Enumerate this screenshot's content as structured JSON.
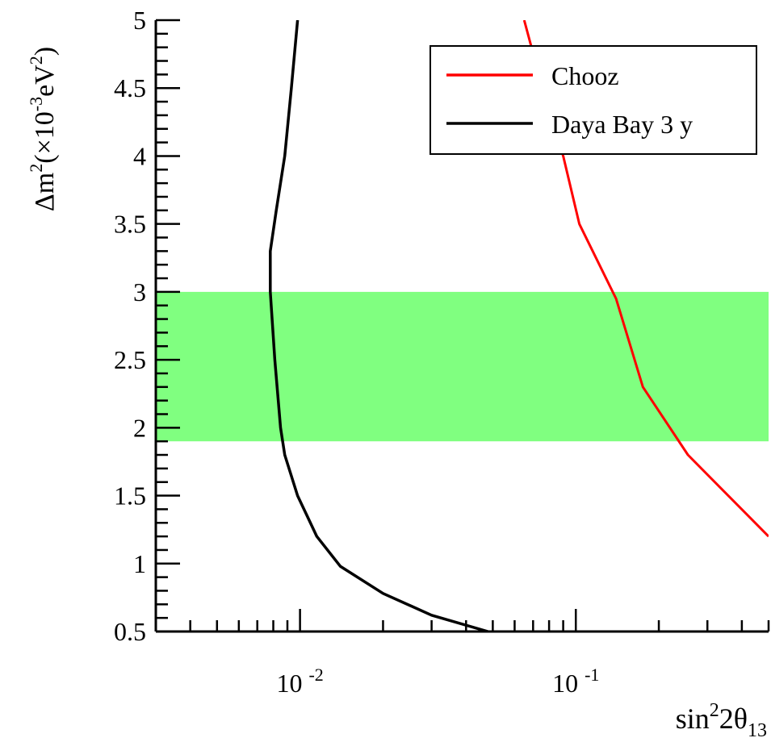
{
  "chart_data": {
    "type": "line",
    "xscale": "log",
    "xlim": [
      0.003,
      0.5
    ],
    "ylim": [
      0.5,
      5
    ],
    "grid": false,
    "legend_placement": "top-right",
    "xlabel": {
      "base": "sin",
      "sup1": "2",
      "mid": "2θ",
      "sub": "13"
    },
    "ylabel": {
      "a": "Δm",
      "sup1": "2",
      "b": "(×10",
      "sup2": "-3",
      "c": "eV",
      "sup3": "2",
      "d": ")"
    },
    "y_ticks": [
      0.5,
      1,
      1.5,
      2,
      2.5,
      3,
      3.5,
      4,
      4.5,
      5
    ],
    "y_tick_labels": [
      "0.5",
      "1",
      "1.5",
      "2",
      "2.5",
      "3",
      "3.5",
      "4",
      "4.5",
      "5"
    ],
    "x_tick_labels": [
      {
        "value": 0.01,
        "base": "10",
        "exp": "-2"
      },
      {
        "value": 0.1,
        "base": "10",
        "exp": "-1"
      }
    ],
    "band": {
      "ymin": 1.9,
      "ymax": 3.0,
      "color": "#80ff80"
    },
    "series": [
      {
        "name": "Chooz",
        "color": "#ff0000",
        "points": [
          [
            0.065,
            5.0
          ],
          [
            0.078,
            4.4
          ],
          [
            0.09,
            4.0
          ],
          [
            0.103,
            3.5
          ],
          [
            0.14,
            2.95
          ],
          [
            0.175,
            2.3
          ],
          [
            0.255,
            1.8
          ],
          [
            0.5,
            1.2
          ]
        ]
      },
      {
        "name": "Daya Bay 3 y",
        "color": "#000000",
        "points": [
          [
            0.0098,
            5.0
          ],
          [
            0.0093,
            4.5
          ],
          [
            0.0088,
            4.0
          ],
          [
            0.0082,
            3.6
          ],
          [
            0.0078,
            3.3
          ],
          [
            0.0078,
            3.0
          ],
          [
            0.0081,
            2.5
          ],
          [
            0.0085,
            2.0
          ],
          [
            0.0088,
            1.8
          ],
          [
            0.0098,
            1.5
          ],
          [
            0.0115,
            1.2
          ],
          [
            0.014,
            0.98
          ],
          [
            0.02,
            0.78
          ],
          [
            0.03,
            0.62
          ],
          [
            0.048,
            0.5
          ]
        ]
      }
    ]
  }
}
